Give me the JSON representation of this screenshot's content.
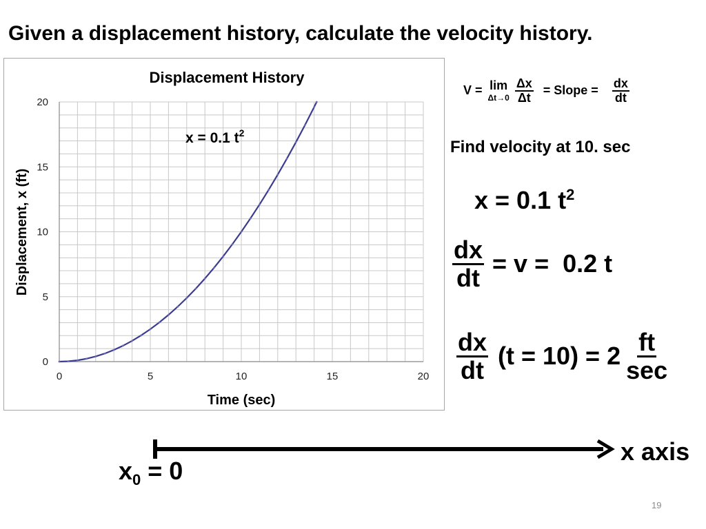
{
  "title": "Given a displacement history, calculate the velocity history.",
  "definition": {
    "v_label": "V =",
    "lim_label": "lim",
    "lim_sub": "Δt→0",
    "delta_num": "Δx",
    "delta_den": "Δt",
    "slope_label": "= Slope =",
    "deriv_num": "dx",
    "deriv_den": "dt"
  },
  "find_text": "Find velocity at 10. sec",
  "equation_x": {
    "lhs": "x = 0.1 t",
    "exp": "2"
  },
  "equation_v": {
    "num": "dx",
    "den": "dt",
    "rhs": "= v =  0.2 t"
  },
  "equation_final": {
    "num": "dx",
    "den": "dt",
    "middle": "(t = 10) = 2",
    "unit_num": "ft",
    "unit_den": "sec"
  },
  "axis": {
    "label": "x axis",
    "origin_base": "x",
    "origin_sub": "0",
    "origin_rest": " = 0"
  },
  "page_number": "19",
  "chart_data": {
    "type": "line",
    "title": "Displacement History",
    "xlabel": "Time (sec)",
    "ylabel": "Displacement, x (ft)",
    "xlim": [
      0,
      20
    ],
    "ylim": [
      0,
      20
    ],
    "x_ticks": [
      0,
      5,
      10,
      15,
      20
    ],
    "y_ticks": [
      0,
      5,
      10,
      15,
      20
    ],
    "grid": true,
    "annotation": {
      "text": "x = 0.1 t",
      "exp": "2"
    },
    "series": [
      {
        "color": "#3b3b8f",
        "x": [
          0,
          0.5,
          1,
          1.5,
          2,
          2.5,
          3,
          3.5,
          4,
          4.5,
          5,
          5.5,
          6,
          6.5,
          7,
          7.5,
          8,
          8.5,
          9,
          9.5,
          10,
          10.5,
          11,
          11.5,
          12,
          12.5,
          13,
          13.5,
          14,
          14.14
        ],
        "y": [
          0,
          0.025,
          0.1,
          0.225,
          0.4,
          0.625,
          0.9,
          1.225,
          1.6,
          2.025,
          2.5,
          3.025,
          3.6,
          4.225,
          4.9,
          5.625,
          6.4,
          7.225,
          8.1,
          9.025,
          10,
          11.025,
          12.1,
          13.225,
          14.4,
          15.625,
          16.9,
          18.225,
          19.6,
          20
        ]
      }
    ]
  }
}
